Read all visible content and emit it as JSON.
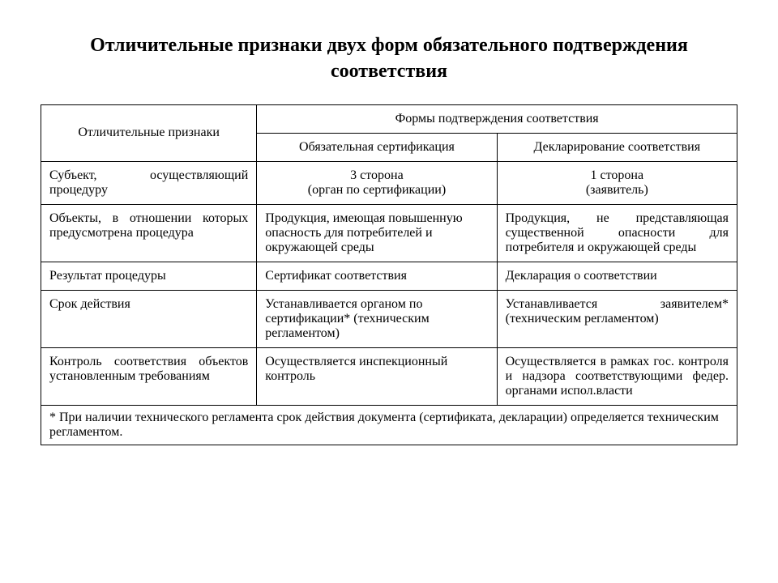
{
  "title": "Отличительные признаки двух форм обязательного подтверждения соответствия",
  "table": {
    "header_left": "Отличительные признаки",
    "header_top": "Формы подтверждения соответствия",
    "col_b": "Обязательная сертификация",
    "col_c": "Декларирование соответствия",
    "rows": [
      {
        "a": "Субъект, осуществляющий процедуру",
        "b": "3 сторона\n(орган по сертификации)",
        "c": "1 сторона\n(заявитель)"
      },
      {
        "a": "Объекты, в отношении которых предусмотрена процедура",
        "b": "Продукция, имеющая повышенную опасность для потребителей и окружающей среды",
        "c": "Продукция, не представляющая существенной опасности для потребителя и окружающей среды"
      },
      {
        "a": "Результат процедуры",
        "b": "Сертификат соответствия",
        "c": "Декларация о соответствии"
      },
      {
        "a": "Срок действия",
        "b": "Устанавливается органом по сертификации* (техническим регламентом)",
        "c": "Устанавливается заявителем* (техническим регламентом)"
      },
      {
        "a": "Контроль соответствия объектов установленным требованиям",
        "b": "Осуществляется инспекционный контроль",
        "c": "Осуществляется в рамках гос. контроля и надзора соответствующими федер. органами испол.власти"
      }
    ],
    "footnote": "* При наличии технического регламента срок действия документа (сертификата, декларации) определяется техническим регламентом."
  }
}
